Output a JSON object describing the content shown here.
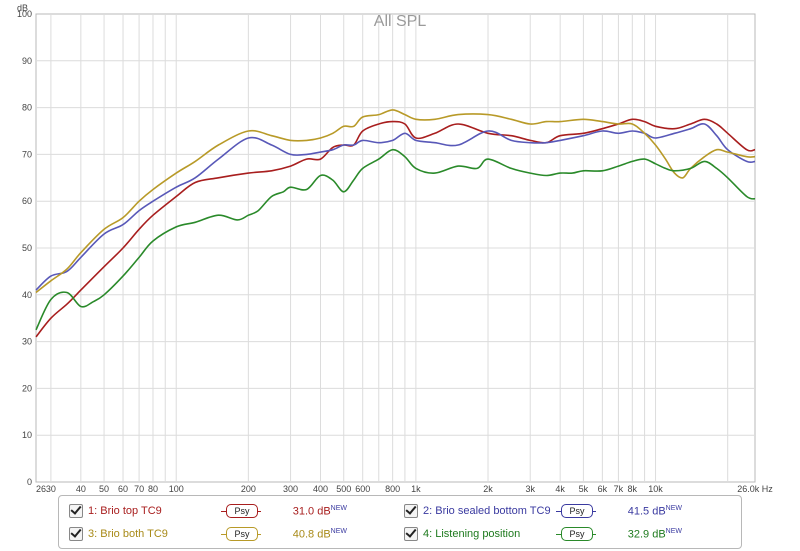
{
  "chart_data": {
    "type": "line",
    "title": "All SPL",
    "ylabel": "dB",
    "xlabel": "",
    "x_unit": "Hz",
    "xscale": "log",
    "xlim": [
      26,
      26000
    ],
    "ylim": [
      0,
      100
    ],
    "yticks": [
      0,
      10,
      20,
      30,
      40,
      50,
      60,
      70,
      80,
      90,
      100
    ],
    "xticks": [
      {
        "v": 26,
        "label": "26"
      },
      {
        "v": 30,
        "label": "30"
      },
      {
        "v": 40,
        "label": "40"
      },
      {
        "v": 50,
        "label": "50"
      },
      {
        "v": 60,
        "label": "60"
      },
      {
        "v": 70,
        "label": "70"
      },
      {
        "v": 80,
        "label": "80"
      },
      {
        "v": 100,
        "label": "100"
      },
      {
        "v": 200,
        "label": "200"
      },
      {
        "v": 300,
        "label": "300"
      },
      {
        "v": 400,
        "label": "400"
      },
      {
        "v": 500,
        "label": "500"
      },
      {
        "v": 600,
        "label": "600"
      },
      {
        "v": 800,
        "label": "800"
      },
      {
        "v": 1000,
        "label": "1k"
      },
      {
        "v": 2000,
        "label": "2k"
      },
      {
        "v": 3000,
        "label": "3k"
      },
      {
        "v": 4000,
        "label": "4k"
      },
      {
        "v": 5000,
        "label": "5k"
      },
      {
        "v": 6000,
        "label": "6k"
      },
      {
        "v": 7000,
        "label": "7k"
      },
      {
        "v": 8000,
        "label": "8k"
      },
      {
        "v": 10000,
        "label": "10k"
      },
      {
        "v": 26000,
        "label": "26.0k Hz"
      }
    ],
    "grid": true,
    "series": [
      {
        "name": "1: Brio top TC9",
        "color": "#a81e1e",
        "value": "31.0 dB",
        "x": [
          26,
          30,
          35,
          40,
          50,
          60,
          70,
          80,
          100,
          120,
          150,
          200,
          250,
          300,
          350,
          400,
          450,
          500,
          550,
          600,
          700,
          800,
          900,
          1000,
          1200,
          1500,
          2000,
          2500,
          3000,
          3500,
          4000,
          5000,
          6000,
          7000,
          8000,
          9000,
          10000,
          12000,
          14000,
          16000,
          18000,
          20000,
          24000,
          26000
        ],
        "y": [
          31,
          35,
          38,
          41,
          46,
          50,
          54,
          57,
          61,
          64,
          65,
          66,
          66.5,
          67.5,
          69,
          69,
          71.5,
          72,
          72,
          75,
          76.5,
          77,
          76.5,
          73.5,
          74.5,
          76.5,
          74.5,
          74,
          73,
          72.5,
          74,
          74.5,
          75.5,
          76.5,
          77.5,
          77,
          76,
          75.5,
          76.5,
          77.5,
          76.5,
          74.5,
          71,
          71
        ]
      },
      {
        "name": "2: Brio sealed bottom TC9",
        "color": "#5858b8",
        "value": "41.5 dB",
        "x": [
          26,
          30,
          35,
          40,
          50,
          60,
          70,
          80,
          100,
          120,
          150,
          200,
          250,
          300,
          350,
          400,
          450,
          500,
          550,
          600,
          700,
          800,
          900,
          1000,
          1200,
          1500,
          2000,
          2500,
          3000,
          3500,
          4000,
          5000,
          6000,
          7000,
          8000,
          9000,
          10000,
          12000,
          14000,
          16000,
          18000,
          20000,
          24000,
          26000
        ],
        "y": [
          41,
          44,
          45,
          48,
          53,
          55,
          58,
          60,
          63,
          65,
          69,
          73.5,
          72,
          70,
          70,
          70.5,
          71,
          72,
          72,
          73,
          72.5,
          73,
          74.5,
          73,
          72.5,
          72,
          75,
          73,
          72.5,
          72.5,
          73,
          74,
          75,
          74.5,
          75,
          74.5,
          73.5,
          74.5,
          75.5,
          76.5,
          74,
          71,
          68.5,
          68.5
        ]
      },
      {
        "name": "3: Brio both TC9",
        "color": "#b89a28",
        "value": "40.8 dB",
        "x": [
          26,
          30,
          35,
          40,
          50,
          60,
          70,
          80,
          100,
          120,
          150,
          200,
          250,
          300,
          350,
          400,
          450,
          500,
          550,
          600,
          700,
          800,
          900,
          1000,
          1200,
          1500,
          2000,
          2500,
          3000,
          3500,
          4000,
          5000,
          6000,
          7000,
          8000,
          9000,
          10000,
          11000,
          12000,
          13000,
          14000,
          16000,
          18000,
          20000,
          24000,
          26000
        ],
        "y": [
          40.5,
          43,
          45.5,
          49,
          54,
          56.5,
          60,
          62.5,
          66,
          68.5,
          72,
          75,
          74,
          73,
          73,
          73.5,
          74.5,
          76,
          76,
          78,
          78.5,
          79.5,
          78.5,
          77.5,
          77.5,
          78.5,
          78.5,
          77.5,
          76.5,
          77,
          77,
          77.5,
          77,
          76.5,
          76.5,
          74.5,
          72,
          69,
          66,
          65,
          67,
          69.5,
          71,
          70.5,
          69.5,
          69.5
        ]
      },
      {
        "name": "4: Listening position",
        "color": "#2a8a2a",
        "value": "32.9 dB",
        "x": [
          26,
          30,
          35,
          40,
          45,
          50,
          60,
          70,
          80,
          100,
          120,
          150,
          180,
          200,
          220,
          250,
          280,
          300,
          350,
          400,
          450,
          500,
          550,
          600,
          700,
          800,
          900,
          1000,
          1200,
          1500,
          1800,
          2000,
          2500,
          3000,
          3500,
          4000,
          4500,
          5000,
          6000,
          7000,
          8000,
          9000,
          10000,
          11000,
          12000,
          14000,
          16000,
          18000,
          20000,
          24000,
          26000
        ],
        "y": [
          32.5,
          39,
          40.5,
          37.5,
          38.5,
          40,
          44,
          48,
          51.5,
          54.5,
          55.5,
          57,
          56,
          57,
          58,
          61,
          62,
          63,
          62.5,
          65.5,
          64.5,
          62,
          64.5,
          67,
          69,
          71,
          69.5,
          67,
          66,
          67.5,
          67,
          69,
          67,
          66,
          65.5,
          66,
          66,
          66.5,
          66.5,
          67.5,
          68.5,
          69,
          68,
          67,
          66.5,
          67,
          68.5,
          67,
          65,
          61,
          60.5
        ]
      }
    ]
  },
  "legend": {
    "psy_label": "Psy",
    "new_tag": "NEW"
  }
}
